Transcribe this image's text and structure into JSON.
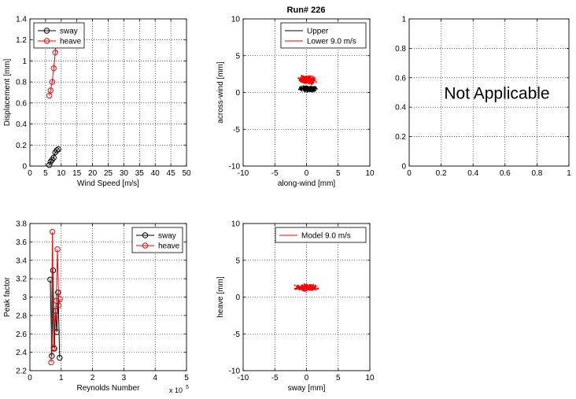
{
  "figure_title": "Run# 226",
  "chart_data": [
    {
      "id": "disp-vs-wind",
      "type": "line",
      "xlabel": "Wind Speed [m/s]",
      "ylabel": "Displacement [mm]",
      "xlim": [
        0,
        50
      ],
      "ylim": [
        0,
        1.4
      ],
      "xticks": [
        "0",
        "5",
        "10",
        "15",
        "20",
        "25",
        "30",
        "35",
        "40",
        "45",
        "50"
      ],
      "yticks": [
        "0",
        "0.2",
        "0.4",
        "0.6",
        "0.8",
        "1",
        "1.2",
        "1.4"
      ],
      "grid": true,
      "legend": "top-left",
      "series": [
        {
          "name": "sway",
          "color": "#000000",
          "marker": "circle",
          "x": [
            6.2,
            6.6,
            7.1,
            7.6,
            8.1,
            8.6,
            9.1
          ],
          "y": [
            0.01,
            0.04,
            0.06,
            0.08,
            0.13,
            0.15,
            0.16
          ]
        },
        {
          "name": "heave",
          "color": "#ff0000",
          "marker": "circle",
          "x": [
            6.2,
            6.6,
            7.1,
            7.6,
            8.1,
            8.6
          ],
          "y": [
            0.67,
            0.72,
            0.8,
            0.93,
            1.08,
            1.32
          ]
        }
      ]
    },
    {
      "id": "across-vs-along",
      "type": "scatter",
      "xlabel": "along-wind [mm]",
      "ylabel": "across-wind [mm]",
      "xlim": [
        -10,
        10
      ],
      "ylim": [
        -10,
        10
      ],
      "xticks": [
        "-10",
        "-5",
        "0",
        "5",
        "10"
      ],
      "yticks": [
        "-10",
        "-5",
        "0",
        "5",
        "10"
      ],
      "grid": true,
      "legend": "top-right",
      "series": [
        {
          "name": "Upper",
          "color": "#000000",
          "center": [
            0.2,
            0.5
          ],
          "spread": [
            1.6,
            0.45
          ]
        },
        {
          "name": "Lower 9.0 m/s",
          "color": "#ff0000",
          "center": [
            0.1,
            1.7
          ],
          "spread": [
            1.7,
            0.7
          ]
        }
      ]
    },
    {
      "id": "not-applicable",
      "type": "line",
      "xlim": [
        0,
        1
      ],
      "ylim": [
        0,
        1
      ],
      "xticks": [
        "0",
        "0.2",
        "0.4",
        "0.6",
        "0.8",
        "1"
      ],
      "yticks": [
        "0",
        "0.2",
        "0.4",
        "0.6",
        "0.8",
        "1"
      ],
      "grid": true,
      "annotation": "Not Applicable",
      "series": []
    },
    {
      "id": "peak-vs-reynolds",
      "type": "line",
      "xlabel": "Reynolds Number",
      "ylabel": "Peak factor",
      "x_exponent": "x 10",
      "x_exponent_power": "5",
      "xlim": [
        0,
        5
      ],
      "ylim": [
        2.2,
        3.8
      ],
      "xticks": [
        "0",
        "1",
        "2",
        "3",
        "4",
        "5"
      ],
      "yticks": [
        "2.2",
        "2.4",
        "2.6",
        "2.8",
        "3",
        "3.2",
        "3.4",
        "3.6",
        "3.8"
      ],
      "grid": true,
      "legend": "top-right",
      "series": [
        {
          "name": "sway",
          "color": "#000000",
          "marker": "circle",
          "x": [
            0.65,
            0.7,
            0.74,
            0.78,
            0.82,
            0.86,
            0.9,
            0.95
          ],
          "y": [
            3.19,
            2.36,
            3.29,
            2.44,
            2.85,
            2.62,
            3.05,
            2.34
          ]
        },
        {
          "name": "heave",
          "color": "#ff0000",
          "marker": "circle",
          "x": [
            0.68,
            0.72,
            0.76,
            0.8,
            0.84,
            0.88,
            0.92,
            0.96
          ],
          "y": [
            2.29,
            3.71,
            2.45,
            2.76,
            2.96,
            3.52,
            2.91,
            2.98
          ]
        }
      ]
    },
    {
      "id": "heave-vs-sway",
      "type": "scatter",
      "xlabel": "sway [mm]",
      "ylabel": "heave [mm]",
      "xlim": [
        -10,
        10
      ],
      "ylim": [
        -10,
        10
      ],
      "xticks": [
        "-10",
        "-5",
        "0",
        "5",
        "10"
      ],
      "yticks": [
        "-10",
        "-5",
        "0",
        "5",
        "10"
      ],
      "grid": true,
      "legend": "top-right",
      "series": [
        {
          "name": "Model  9.0  m/s",
          "color": "#ff0000",
          "center": [
            0.0,
            1.3
          ],
          "spread": [
            2.2,
            0.55
          ]
        }
      ]
    }
  ]
}
